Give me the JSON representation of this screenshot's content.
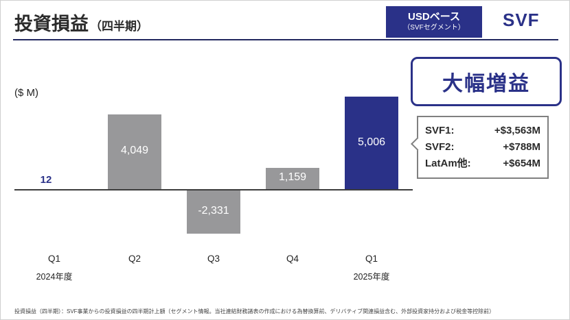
{
  "slide": {
    "title": "投資損益",
    "title_suffix": "（四半期）",
    "badge": {
      "line1": "USDベース",
      "line2": "（SVFセグメント）"
    },
    "logo": "SVF",
    "unit_label": "($ M)",
    "callout": "大幅増益",
    "breakdown": {
      "rows": [
        {
          "label": "SVF1:",
          "value": "+$3,563M"
        },
        {
          "label": "SVF2:",
          "value": "+$788M"
        },
        {
          "label": "LatAm他:",
          "value": "+$654M"
        }
      ]
    },
    "footnote": "投資損益（四半期）：SVF事業からの投資損益の四半期計上額（セグメント情報。当社連結財務諸表の作成における為替換算前、デリバティブ関連損益含む、外部投資家持分および税金等控除前）"
  },
  "chart_data": {
    "type": "bar",
    "title": "投資損益（四半期）",
    "ylabel": "($ M)",
    "categories": [
      "Q1",
      "Q2",
      "Q3",
      "Q4",
      "Q1"
    ],
    "category_sublabels": [
      "2024年度",
      "",
      "",
      "",
      "2025年度"
    ],
    "values": [
      12,
      4049,
      -2331,
      1159,
      5006
    ],
    "value_labels": [
      "12",
      "4,049",
      "-2,331",
      "1,159",
      "5,006"
    ],
    "highlight_index": 4,
    "colors": {
      "default": "#98989a",
      "highlight": "#2a3188"
    },
    "baseline": 0,
    "grid": false,
    "legend": false
  }
}
